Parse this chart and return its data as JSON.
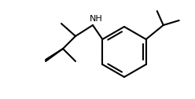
{
  "background_color": "#ffffff",
  "line_color": "#000000",
  "line_width": 1.5,
  "nh_label": "NH",
  "nh_fontsize": 8,
  "figsize": [
    2.48,
    1.26
  ],
  "dpi": 100
}
